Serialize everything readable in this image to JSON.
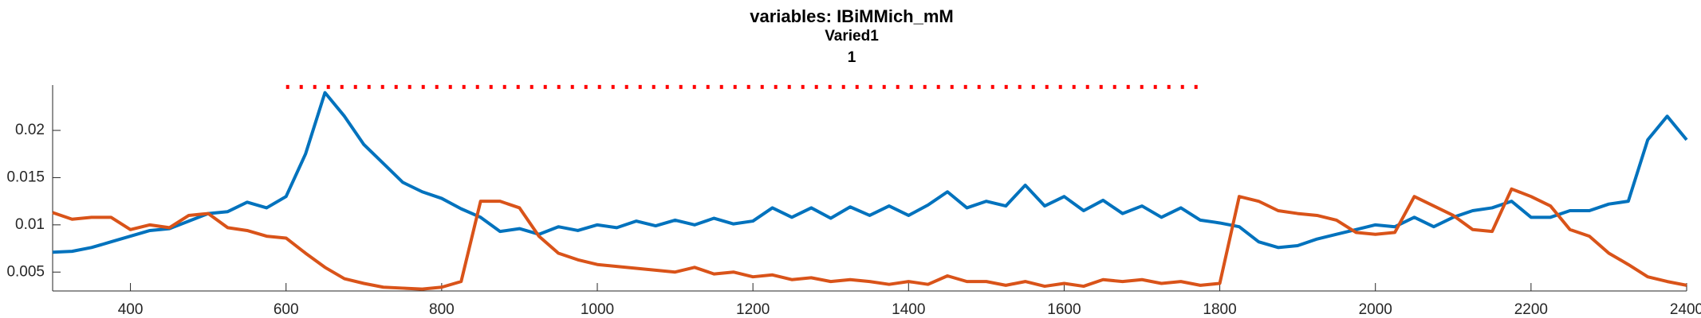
{
  "chart_data": {
    "type": "line",
    "title": "variables: IBiMMich_mM",
    "subtitle": "Varied1",
    "subtitle2": "1",
    "x": [
      300,
      325,
      350,
      375,
      400,
      425,
      450,
      475,
      500,
      525,
      550,
      575,
      600,
      625,
      650,
      675,
      700,
      725,
      750,
      775,
      800,
      825,
      850,
      875,
      900,
      925,
      950,
      975,
      1000,
      1025,
      1050,
      1075,
      1100,
      1125,
      1150,
      1175,
      1200,
      1225,
      1250,
      1275,
      1300,
      1325,
      1350,
      1375,
      1400,
      1425,
      1450,
      1475,
      1500,
      1525,
      1550,
      1575,
      1600,
      1625,
      1650,
      1675,
      1700,
      1725,
      1750,
      1775,
      1800,
      1825,
      1850,
      1875,
      1900,
      1925,
      1950,
      1975,
      2000,
      2025,
      2050,
      2075,
      2100,
      2125,
      2150,
      2175,
      2200,
      2225,
      2250,
      2275,
      2300,
      2325,
      2350,
      2375,
      2400
    ],
    "series": [
      {
        "color": "#0072bd",
        "values": [
          0.0071,
          0.0072,
          0.0076,
          0.0082,
          0.0088,
          0.0094,
          0.0096,
          0.0104,
          0.0112,
          0.0114,
          0.0124,
          0.0118,
          0.013,
          0.0175,
          0.024,
          0.0215,
          0.0185,
          0.0165,
          0.0145,
          0.0135,
          0.0128,
          0.0117,
          0.0108,
          0.0093,
          0.0096,
          0.009,
          0.0098,
          0.0094,
          0.01,
          0.0097,
          0.0104,
          0.0099,
          0.0105,
          0.01,
          0.0107,
          0.0101,
          0.0104,
          0.0118,
          0.0108,
          0.0118,
          0.0107,
          0.0119,
          0.011,
          0.012,
          0.011,
          0.0121,
          0.0135,
          0.0118,
          0.0125,
          0.012,
          0.0142,
          0.012,
          0.013,
          0.0115,
          0.0126,
          0.0112,
          0.012,
          0.0108,
          0.0118,
          0.0105,
          0.0102,
          0.0098,
          0.0082,
          0.0076,
          0.0078,
          0.0085,
          0.009,
          0.0095,
          0.01,
          0.0098,
          0.0108,
          0.0098,
          0.0108,
          0.0115,
          0.0118,
          0.0125,
          0.0108,
          0.0108,
          0.0115,
          0.0115,
          0.0122,
          0.0125,
          0.019,
          0.0215,
          0.019
        ]
      },
      {
        "color": "#d95319",
        "values": [
          0.0113,
          0.0106,
          0.0108,
          0.0108,
          0.0095,
          0.01,
          0.0097,
          0.011,
          0.0112,
          0.0097,
          0.0094,
          0.0088,
          0.0086,
          0.007,
          0.0055,
          0.0043,
          0.0038,
          0.0034,
          0.0033,
          0.0032,
          0.0034,
          0.004,
          0.0125,
          0.0125,
          0.0118,
          0.0088,
          0.007,
          0.0063,
          0.0058,
          0.0056,
          0.0054,
          0.0052,
          0.005,
          0.0055,
          0.0048,
          0.005,
          0.0045,
          0.0047,
          0.0042,
          0.0044,
          0.004,
          0.0042,
          0.004,
          0.0037,
          0.004,
          0.0037,
          0.0046,
          0.004,
          0.004,
          0.0036,
          0.004,
          0.0035,
          0.0038,
          0.0035,
          0.0042,
          0.004,
          0.0042,
          0.0038,
          0.004,
          0.0036,
          0.0038,
          0.013,
          0.0125,
          0.0115,
          0.0112,
          0.011,
          0.0105,
          0.0092,
          0.009,
          0.0092,
          0.013,
          0.012,
          0.011,
          0.0095,
          0.0093,
          0.0138,
          0.013,
          0.012,
          0.0095,
          0.0088,
          0.007,
          0.0058,
          0.0045,
          0.004,
          0.0036
        ]
      }
    ],
    "threshold": {
      "x": [
        600,
        1780
      ],
      "value": 0.0246,
      "color": "#ff0000"
    },
    "xlim": [
      300,
      2400
    ],
    "xticks": [
      400,
      600,
      800,
      1000,
      1200,
      1400,
      1600,
      1800,
      2000,
      2200,
      2400
    ],
    "ylim": [
      0.003,
      0.0248
    ],
    "yticks": [
      0.005,
      0.01,
      0.015,
      0.02
    ]
  }
}
